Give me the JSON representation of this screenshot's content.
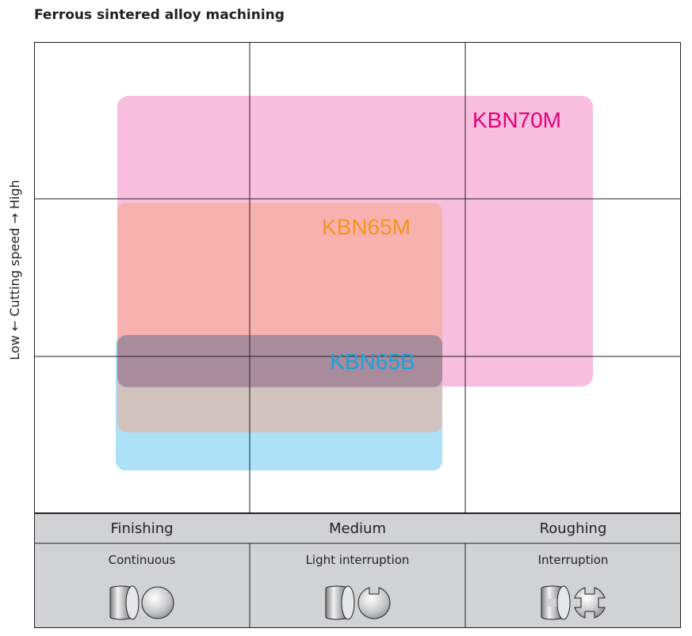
{
  "title": "Ferrous sintered alloy machining",
  "y_axis_label": "Low ← Cutting speed → High",
  "columns": [
    {
      "level": "Finishing",
      "mode": "Continuous",
      "icon": "continuous-cut-workpiece-icon"
    },
    {
      "level": "Medium",
      "mode": "Light interruption",
      "icon": "light-interruption-workpiece-icon"
    },
    {
      "level": "Roughing",
      "mode": "Interruption",
      "icon": "interruption-workpiece-icon"
    }
  ],
  "grades": [
    {
      "name": "KBN70M",
      "color": "#f06eb3",
      "label_color": "#e5007e"
    },
    {
      "name": "KBN65M",
      "color": "#f5a582",
      "label_color": "#f7931d"
    },
    {
      "name": "KBN65B",
      "color": "#5cc4f2",
      "label_color": "#1ba1dd"
    }
  ],
  "colors": {
    "grid": "#231f20",
    "band": "#d1d2d4",
    "overlap": "#8a6d8a"
  }
}
